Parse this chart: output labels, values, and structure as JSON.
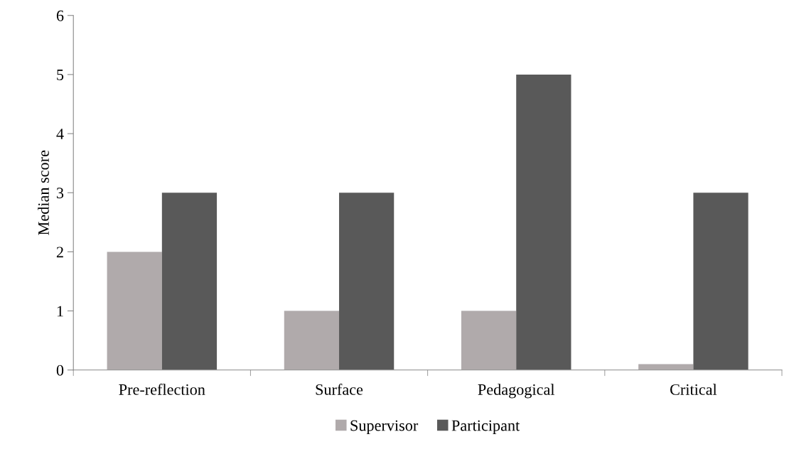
{
  "chart_data": {
    "type": "bar",
    "ylabel": "Median score",
    "categories": [
      "Pre-reflection",
      "Surface",
      "Pedagogical",
      "Critical"
    ],
    "series": [
      {
        "name": "Supervisor",
        "color": "#b0aaab",
        "values": [
          2,
          1,
          1,
          0.1
        ]
      },
      {
        "name": "Participant",
        "color": "#595959",
        "values": [
          3,
          3,
          5,
          3
        ]
      }
    ],
    "ylim": [
      0,
      6
    ],
    "yticks": [
      0,
      1,
      2,
      3,
      4,
      5,
      6
    ],
    "grid": false,
    "legend": "bottom"
  }
}
